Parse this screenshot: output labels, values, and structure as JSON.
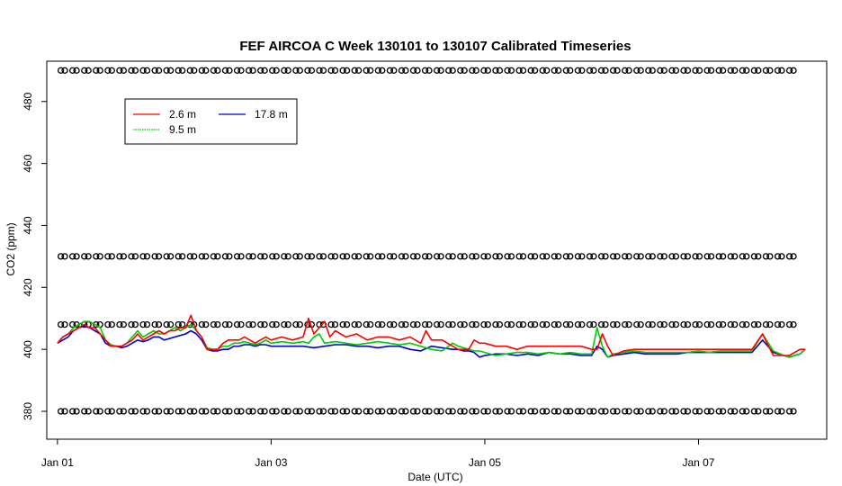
{
  "chart_data": {
    "type": "line",
    "title": "FEF AIRCOA C  Week 130101 to 130107  Calibrated Timeseries",
    "xlabel": "Date (UTC)",
    "ylabel": "CO2 (ppm)",
    "xlim": [
      -0.1,
      7.2
    ],
    "ylim": [
      371,
      493
    ],
    "x_ticks": [
      {
        "x": 0,
        "label": "Jan 01"
      },
      {
        "x": 2,
        "label": "Jan 03"
      },
      {
        "x": 4,
        "label": "Jan 05"
      },
      {
        "x": 6,
        "label": "Jan 07"
      }
    ],
    "y_ticks": [
      380,
      400,
      420,
      440,
      460,
      480
    ],
    "legend": {
      "placement": "top-left",
      "entries": [
        {
          "name": "2.6 m",
          "color": "#ff0000"
        },
        {
          "name": "9.5 m",
          "color": "#00cc00"
        },
        {
          "name": "17.8 m",
          "color": "#0000cc"
        }
      ]
    },
    "series": [
      {
        "name": "17.8 m",
        "color": "#0000cc",
        "x": [
          0,
          0.05,
          0.1,
          0.15,
          0.2,
          0.25,
          0.3,
          0.35,
          0.4,
          0.45,
          0.5,
          0.55,
          0.6,
          0.65,
          0.7,
          0.75,
          0.8,
          0.85,
          0.9,
          0.95,
          1,
          1.05,
          1.1,
          1.15,
          1.2,
          1.25,
          1.3,
          1.35,
          1.4,
          1.45,
          1.5,
          1.55,
          1.6,
          1.65,
          1.7,
          1.75,
          1.8,
          1.85,
          1.9,
          1.95,
          2,
          2.1,
          2.2,
          2.3,
          2.4,
          2.5,
          2.6,
          2.7,
          2.8,
          2.9,
          3,
          3.1,
          3.2,
          3.3,
          3.4,
          3.5,
          3.6,
          3.7,
          3.75,
          3.8,
          3.85,
          3.9,
          3.95,
          4,
          4.1,
          4.2,
          4.3,
          4.4,
          4.5,
          4.6,
          4.7,
          4.8,
          4.9,
          5,
          5.05,
          5.1,
          5.15,
          5.2,
          5.3,
          5.4,
          5.5,
          5.6,
          5.7,
          5.8,
          5.9,
          6,
          6.1,
          6.2,
          6.3,
          6.4,
          6.5,
          6.6,
          6.7,
          6.8,
          6.85,
          6.9,
          6.95,
          7
        ],
        "values": [
          402,
          403,
          404,
          406,
          407,
          407.5,
          407,
          406,
          405,
          402,
          401,
          401,
          400.5,
          401,
          402,
          403,
          402.5,
          403,
          404,
          404,
          403,
          403.5,
          404,
          404.5,
          405,
          406,
          405,
          403,
          400,
          399.5,
          399.5,
          400,
          400,
          401,
          401,
          401.5,
          401.5,
          401,
          401.5,
          401.5,
          401,
          401,
          401,
          401,
          400.5,
          401,
          401.5,
          401.5,
          401,
          401,
          400.5,
          401,
          401,
          400,
          399.5,
          401,
          400.5,
          400,
          400,
          399.5,
          399.5,
          399,
          397.5,
          398,
          398.5,
          398.5,
          398,
          398.5,
          398,
          399,
          398.5,
          398.5,
          398,
          398,
          401,
          400,
          397.5,
          398,
          398.5,
          399,
          398.5,
          398.5,
          398.5,
          398.5,
          399,
          399,
          399,
          399,
          399,
          399,
          399,
          403,
          399,
          398,
          397.5,
          398,
          398.5,
          400
        ]
      },
      {
        "name": "9.5 m",
        "color": "#00cc00",
        "x": [
          0,
          0.05,
          0.1,
          0.15,
          0.2,
          0.25,
          0.3,
          0.35,
          0.4,
          0.45,
          0.5,
          0.55,
          0.6,
          0.65,
          0.7,
          0.75,
          0.8,
          0.85,
          0.9,
          0.95,
          1,
          1.05,
          1.1,
          1.15,
          1.2,
          1.25,
          1.3,
          1.35,
          1.4,
          1.45,
          1.5,
          1.55,
          1.6,
          1.65,
          1.7,
          1.75,
          1.8,
          1.85,
          1.9,
          1.95,
          2,
          2.1,
          2.2,
          2.3,
          2.35,
          2.4,
          2.45,
          2.5,
          2.6,
          2.7,
          2.8,
          2.9,
          3,
          3.1,
          3.2,
          3.3,
          3.4,
          3.5,
          3.6,
          3.7,
          3.75,
          3.8,
          3.85,
          3.9,
          3.95,
          4,
          4.1,
          4.2,
          4.3,
          4.4,
          4.5,
          4.6,
          4.7,
          4.8,
          4.9,
          5,
          5.05,
          5.1,
          5.15,
          5.2,
          5.3,
          5.4,
          5.5,
          5.6,
          5.7,
          5.8,
          5.9,
          6,
          6.1,
          6.2,
          6.3,
          6.4,
          6.5,
          6.6,
          6.7,
          6.8,
          6.85,
          6.9,
          6.95,
          7
        ],
        "values": [
          402,
          404,
          405,
          407,
          408,
          409,
          409,
          408,
          407,
          403,
          401.5,
          401,
          401,
          402,
          404,
          406,
          404,
          405,
          406,
          405,
          405,
          406,
          407,
          406,
          407,
          408,
          406,
          404,
          400.5,
          400,
          400,
          401,
          401,
          402,
          402,
          402.5,
          402,
          401.5,
          402,
          403,
          402,
          402.5,
          402,
          402.5,
          402,
          404,
          405,
          402,
          402.5,
          402,
          401.5,
          402,
          402.5,
          402,
          401.5,
          402,
          401,
          400,
          399.5,
          402,
          401,
          400.5,
          400,
          399.5,
          399.5,
          399,
          398,
          398.5,
          399,
          399,
          398.5,
          399,
          398.5,
          399,
          398.5,
          398.5,
          407,
          401,
          397.5,
          398.5,
          399,
          399.5,
          399,
          399,
          399,
          399,
          399,
          399.5,
          399,
          399.5,
          399.5,
          399.5,
          399.5,
          405,
          399.5,
          398,
          397.5,
          398,
          398.5,
          400
        ]
      },
      {
        "name": "2.6 m",
        "color": "#ff0000",
        "x": [
          0,
          0.05,
          0.1,
          0.15,
          0.2,
          0.25,
          0.3,
          0.35,
          0.4,
          0.45,
          0.5,
          0.55,
          0.6,
          0.65,
          0.7,
          0.75,
          0.8,
          0.85,
          0.9,
          0.95,
          1,
          1.05,
          1.1,
          1.15,
          1.2,
          1.25,
          1.3,
          1.35,
          1.4,
          1.45,
          1.5,
          1.55,
          1.6,
          1.65,
          1.7,
          1.75,
          1.8,
          1.85,
          1.9,
          1.95,
          2,
          2.1,
          2.2,
          2.3,
          2.35,
          2.4,
          2.45,
          2.5,
          2.55,
          2.6,
          2.7,
          2.8,
          2.9,
          3,
          3.1,
          3.2,
          3.3,
          3.4,
          3.45,
          3.5,
          3.6,
          3.7,
          3.75,
          3.8,
          3.85,
          3.9,
          3.95,
          4,
          4.1,
          4.2,
          4.3,
          4.4,
          4.5,
          4.6,
          4.7,
          4.8,
          4.9,
          5,
          5.05,
          5.1,
          5.15,
          5.2,
          5.3,
          5.4,
          5.5,
          5.6,
          5.7,
          5.8,
          5.9,
          6,
          6.1,
          6.2,
          6.3,
          6.4,
          6.5,
          6.6,
          6.7,
          6.8,
          6.85,
          6.9,
          6.95,
          7
        ],
        "values": [
          402,
          404,
          405,
          406,
          407,
          408,
          407,
          407,
          405,
          403,
          401,
          401,
          401,
          402,
          403,
          405,
          403,
          404,
          405,
          406,
          405,
          406,
          406,
          407,
          407,
          411,
          406,
          404,
          400,
          400,
          400,
          402,
          403,
          403,
          403,
          404,
          403,
          402,
          403,
          404,
          403,
          404,
          403,
          404,
          410,
          405,
          407,
          409,
          404,
          406,
          404,
          405,
          403,
          404,
          404,
          403,
          404,
          402,
          406,
          403,
          403,
          401,
          400,
          400,
          400,
          403,
          402,
          402,
          401,
          401,
          400,
          401,
          401,
          401,
          401,
          401,
          401,
          400,
          400,
          405,
          401,
          398,
          399.5,
          400,
          400,
          400,
          400,
          400,
          400,
          400,
          400,
          400,
          400,
          400,
          400,
          405,
          398,
          398,
          398,
          399,
          400,
          400
        ]
      }
    ],
    "calibration_markers": {
      "y_levels": [
        490,
        430,
        408,
        380
      ],
      "x_start": 0.05,
      "step": 0.11,
      "count": 63
    }
  }
}
